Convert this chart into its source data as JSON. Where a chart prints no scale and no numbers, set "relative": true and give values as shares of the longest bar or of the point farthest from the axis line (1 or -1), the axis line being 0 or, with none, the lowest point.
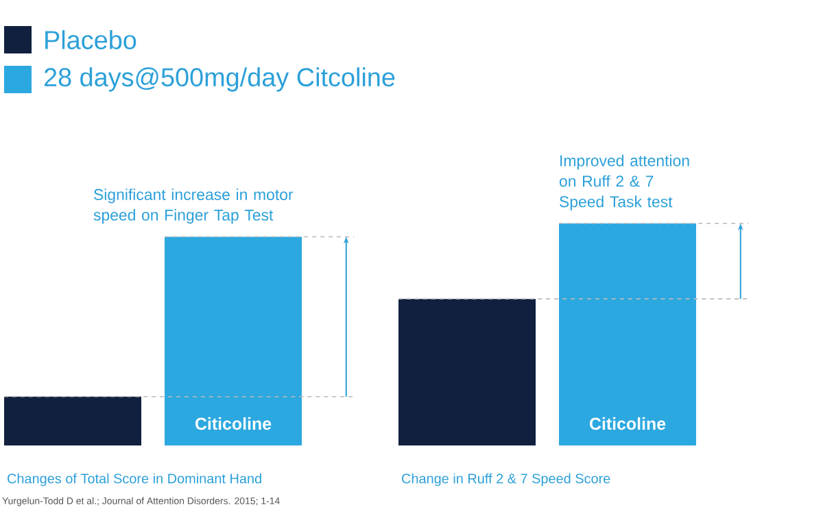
{
  "chart_data": {
    "type": "bar",
    "relative": true,
    "legend": "top left",
    "categories": [
      "Changes of Total Score in Dominant Hand",
      "Change in Ruff 2 & 7 Speed Score"
    ],
    "series": [
      {
        "name": "Placebo",
        "color": "#11203f",
        "values": [
          0.22,
          0.66
        ]
      },
      {
        "name": "28 days@500mg/day Citcoline",
        "color": "#2ca8e0",
        "values": [
          0.94,
          1
        ]
      }
    ],
    "ref_lines": [
      {
        "axis": "y",
        "value": 0.22,
        "color": "#b9b9b9",
        "line_style": "dashed"
      },
      {
        "axis": "y",
        "value": 0.94,
        "color": "#b9b9b9",
        "line_style": "dashed"
      },
      {
        "axis": "y",
        "value": 0.66,
        "color": "#b9b9b9",
        "line_style": "dashed"
      },
      {
        "axis": "y",
        "value": 1,
        "color": "#b9b9b9",
        "line_style": "dashed"
      }
    ],
    "annotations": [
      "Significant increase in motor speed on Finger Tap Test",
      "Improved attention on Ruff 2 & 7 Speed Task test",
      "Citicoline",
      "Citicoline",
      "Yurgelun-Todd D et al.; Journal of Attention Disorders. 2015; 1-14"
    ]
  }
}
